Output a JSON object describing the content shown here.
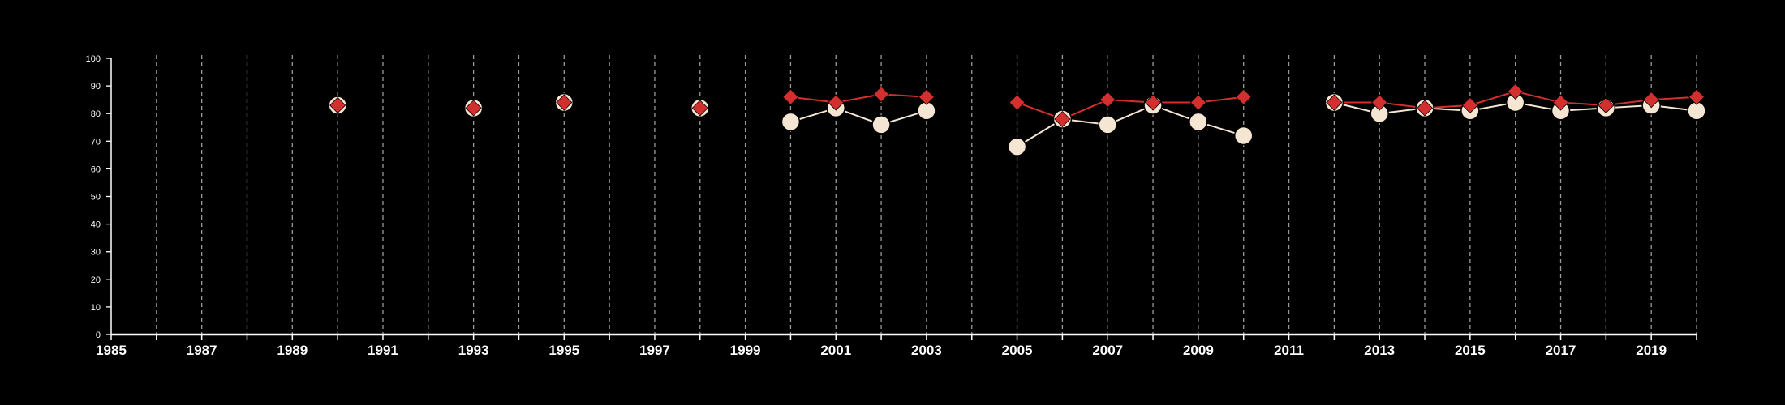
{
  "chart_data": {
    "type": "line",
    "title": "",
    "xlabel": "",
    "ylabel": "",
    "xlim": [
      1985,
      2020
    ],
    "ylim": [
      0,
      100
    ],
    "x_ticks": [
      1985,
      1987,
      1989,
      1991,
      1993,
      1995,
      1997,
      1999,
      2001,
      2003,
      2005,
      2007,
      2009,
      2011,
      2013,
      2015,
      2017,
      2019
    ],
    "y_ticks": [
      0,
      10,
      20,
      30,
      40,
      50,
      60,
      70,
      80,
      90,
      100
    ],
    "grid": "vertical dashed lines every year",
    "legend": "none",
    "series": [
      {
        "marker": "circle",
        "color": "#f5e6d3",
        "points": [
          [
            1990,
            83
          ],
          [
            1993,
            82
          ],
          [
            1995,
            84
          ],
          [
            1998,
            82
          ],
          [
            2000,
            77
          ],
          [
            2001,
            82
          ],
          [
            2002,
            76
          ],
          [
            2003,
            81
          ],
          [
            2005,
            68
          ],
          [
            2006,
            78
          ],
          [
            2007,
            76
          ],
          [
            2008,
            83
          ],
          [
            2009,
            77
          ],
          [
            2010,
            72
          ],
          [
            2012,
            84
          ],
          [
            2013,
            80
          ],
          [
            2014,
            82
          ],
          [
            2015,
            81
          ],
          [
            2016,
            84
          ],
          [
            2017,
            81
          ],
          [
            2018,
            82
          ],
          [
            2019,
            83
          ],
          [
            2020,
            81
          ]
        ]
      },
      {
        "marker": "diamond",
        "color": "#d32f2f",
        "points": [
          [
            1990,
            83
          ],
          [
            1993,
            82
          ],
          [
            1995,
            84
          ],
          [
            1998,
            82
          ],
          [
            2000,
            86
          ],
          [
            2001,
            84
          ],
          [
            2002,
            87
          ],
          [
            2003,
            86
          ],
          [
            2005,
            84
          ],
          [
            2006,
            78
          ],
          [
            2007,
            85
          ],
          [
            2008,
            84
          ],
          [
            2009,
            84
          ],
          [
            2010,
            86
          ],
          [
            2012,
            84
          ],
          [
            2013,
            84
          ],
          [
            2014,
            82
          ],
          [
            2015,
            83
          ],
          [
            2016,
            88
          ],
          [
            2017,
            84
          ],
          [
            2018,
            83
          ],
          [
            2019,
            85
          ],
          [
            2020,
            86
          ]
        ]
      }
    ]
  }
}
